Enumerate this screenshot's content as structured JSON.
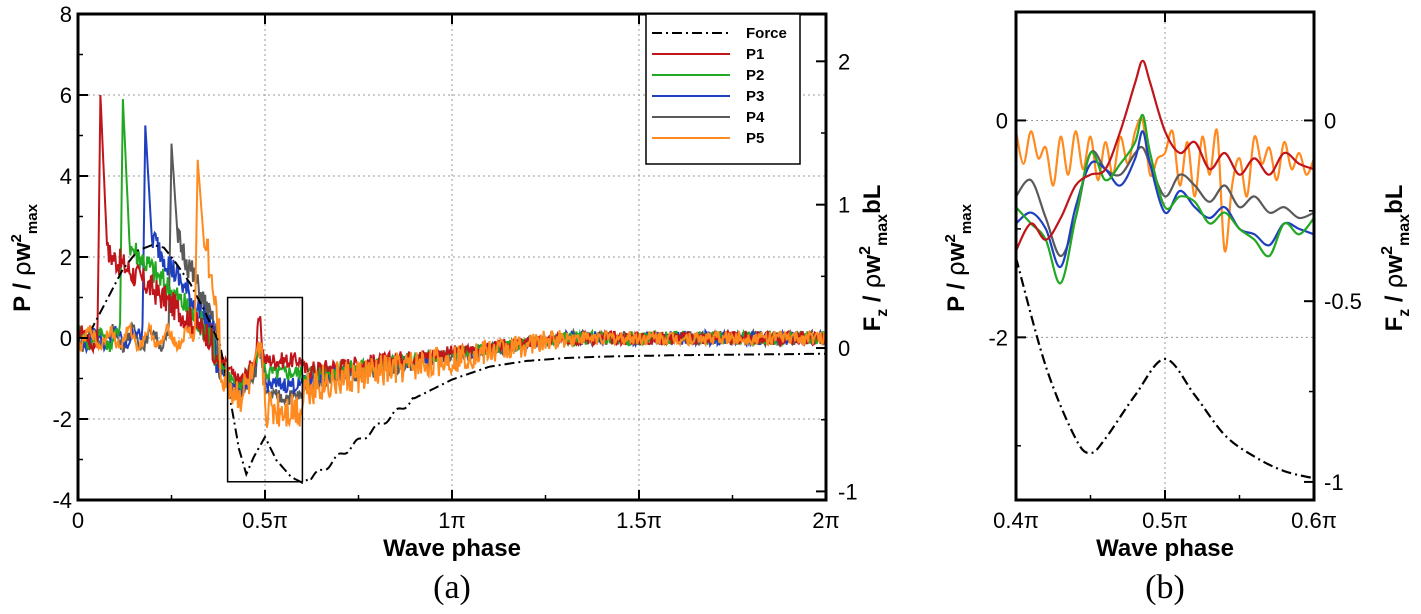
{
  "chart_data": [
    {
      "panel_label": "(a)",
      "type": "line",
      "xlabel": "Wave phase",
      "ylabel": "P / ρw²max",
      "y2label": "Fz / ρw²maxbL",
      "xlim": [
        0,
        2.0
      ],
      "ylim": [
        -4,
        8
      ],
      "y2lim": [
        -1.06,
        2.33
      ],
      "xticks": [
        0,
        0.5,
        1.0,
        1.5,
        2.0
      ],
      "xtick_labels": [
        "0",
        "0.5π",
        "1π",
        "1.5π",
        "2π"
      ],
      "yticks": [
        -4,
        -2,
        0,
        2,
        4,
        6,
        8
      ],
      "ytick_labels": [
        "-4",
        "-2",
        "0",
        "2",
        "4",
        "6",
        "8"
      ],
      "y2ticks": [
        -1,
        0,
        1,
        2
      ],
      "y2tick_labels": [
        "-1",
        "0",
        "1",
        "2"
      ],
      "grid": true,
      "legend_position": "top-right",
      "zoom_box": {
        "x": [
          0.4,
          0.6
        ],
        "y": [
          -3.55,
          1.0
        ]
      },
      "series": [
        {
          "name": "Force",
          "axis": "right",
          "color": "#000000",
          "dash": "dashdot",
          "x": [
            0,
            0.04,
            0.08,
            0.12,
            0.16,
            0.2,
            0.23,
            0.26,
            0.3,
            0.34,
            0.38,
            0.41,
            0.43,
            0.45,
            0.47,
            0.5,
            0.53,
            0.57,
            0.6,
            0.65,
            0.7,
            0.8,
            0.9,
            1.0,
            1.1,
            1.2,
            1.3,
            1.4,
            1.5,
            1.6,
            1.8,
            2.0
          ],
          "y": [
            0.0,
            0.15,
            0.35,
            0.55,
            0.68,
            0.72,
            0.7,
            0.6,
            0.45,
            0.25,
            0.02,
            -0.4,
            -0.7,
            -0.88,
            -0.76,
            -0.62,
            -0.78,
            -0.9,
            -0.94,
            -0.86,
            -0.75,
            -0.55,
            -0.35,
            -0.22,
            -0.13,
            -0.09,
            -0.07,
            -0.06,
            -0.055,
            -0.05,
            -0.045,
            -0.04
          ]
        },
        {
          "name": "P1",
          "axis": "left",
          "color": "#c0161b",
          "peak_at": 0.06,
          "peak": 6.0,
          "lag": 0.0,
          "level": 0.55
        },
        {
          "name": "P2",
          "axis": "left",
          "color": "#23a823",
          "peak_at": 0.12,
          "peak": 5.9,
          "lag": 0.005,
          "level": 0.7
        },
        {
          "name": "P3",
          "axis": "left",
          "color": "#1f3fbf",
          "peak_at": 0.18,
          "peak": 5.25,
          "lag": 0.01,
          "level": 0.85
        },
        {
          "name": "P4",
          "axis": "left",
          "color": "#5a5a5a",
          "peak_at": 0.25,
          "peak": 4.8,
          "lag": 0.015,
          "level": 0.8
        },
        {
          "name": "P5",
          "axis": "left",
          "color": "#ff8a1f",
          "peak_at": 0.32,
          "peak": 4.4,
          "lag": 0.02,
          "level": 0.75
        }
      ]
    },
    {
      "panel_label": "(b)",
      "type": "line",
      "xlabel": "Wave phase",
      "ylabel": "P / ρw²max",
      "y2label": "Fz / ρw²maxbL",
      "xlim": [
        0.4,
        0.6
      ],
      "ylim": [
        -3.5,
        1.0
      ],
      "y2lim": [
        -1.05,
        0.3
      ],
      "xticks": [
        0.4,
        0.5,
        0.6
      ],
      "xtick_labels": [
        "0.4π",
        "0.5π",
        "0.6π"
      ],
      "yticks": [
        0,
        -2
      ],
      "ytick_labels": [
        "0",
        "-2"
      ],
      "y2ticks": [
        0,
        -0.5,
        -1
      ],
      "y2tick_labels": [
        "0",
        "-0.5",
        "-1"
      ],
      "grid": true,
      "series": [
        {
          "name": "Force",
          "axis": "right",
          "color": "#000000",
          "dash": "dashdot",
          "x": [
            0.4,
            0.42,
            0.44,
            0.45,
            0.46,
            0.48,
            0.5,
            0.52,
            0.54,
            0.56,
            0.58,
            0.6
          ],
          "y": [
            -0.38,
            -0.68,
            -0.88,
            -0.92,
            -0.88,
            -0.76,
            -0.66,
            -0.76,
            -0.87,
            -0.93,
            -0.97,
            -0.99
          ]
        },
        {
          "name": "P1",
          "axis": "left",
          "color": "#c0161b",
          "x": [
            0.4,
            0.41,
            0.42,
            0.43,
            0.44,
            0.45,
            0.46,
            0.47,
            0.48,
            0.485,
            0.49,
            0.5,
            0.51,
            0.52,
            0.53,
            0.54,
            0.55,
            0.56,
            0.57,
            0.58,
            0.59,
            0.6
          ],
          "y": [
            -1.2,
            -0.95,
            -1.1,
            -0.9,
            -0.6,
            -0.5,
            -0.45,
            -0.1,
            0.35,
            0.55,
            0.35,
            -0.1,
            -0.3,
            -0.2,
            -0.45,
            -0.3,
            -0.5,
            -0.35,
            -0.5,
            -0.3,
            -0.4,
            -0.45
          ]
        },
        {
          "name": "P2",
          "axis": "left",
          "color": "#23a823",
          "x": [
            0.4,
            0.41,
            0.42,
            0.43,
            0.44,
            0.45,
            0.46,
            0.47,
            0.48,
            0.485,
            0.49,
            0.5,
            0.51,
            0.52,
            0.53,
            0.54,
            0.55,
            0.56,
            0.57,
            0.58,
            0.59,
            0.6
          ],
          "y": [
            -0.8,
            -0.95,
            -1.1,
            -1.5,
            -0.9,
            -0.3,
            -0.55,
            -0.4,
            -0.2,
            0.05,
            -0.3,
            -0.8,
            -0.7,
            -0.75,
            -0.95,
            -0.85,
            -1.0,
            -1.1,
            -1.25,
            -0.95,
            -1.05,
            -0.9
          ]
        },
        {
          "name": "P3",
          "axis": "left",
          "color": "#1f3fbf",
          "x": [
            0.4,
            0.41,
            0.42,
            0.43,
            0.44,
            0.45,
            0.46,
            0.47,
            0.48,
            0.485,
            0.49,
            0.5,
            0.51,
            0.52,
            0.53,
            0.54,
            0.55,
            0.56,
            0.57,
            0.58,
            0.59,
            0.6
          ],
          "y": [
            -0.95,
            -0.85,
            -1.0,
            -1.35,
            -0.8,
            -0.4,
            -0.45,
            -0.6,
            -0.35,
            -0.1,
            -0.4,
            -0.85,
            -0.65,
            -0.8,
            -0.9,
            -0.8,
            -1.0,
            -1.05,
            -1.15,
            -0.95,
            -1.0,
            -1.05
          ]
        },
        {
          "name": "P4",
          "axis": "left",
          "color": "#5a5a5a",
          "x": [
            0.4,
            0.41,
            0.42,
            0.43,
            0.44,
            0.45,
            0.46,
            0.47,
            0.48,
            0.485,
            0.49,
            0.5,
            0.51,
            0.52,
            0.53,
            0.54,
            0.55,
            0.56,
            0.57,
            0.58,
            0.59,
            0.6
          ],
          "y": [
            -0.7,
            -0.55,
            -0.9,
            -1.25,
            -0.9,
            -0.3,
            -0.45,
            -0.5,
            -0.3,
            -0.25,
            -0.4,
            -0.7,
            -0.5,
            -0.6,
            -0.75,
            -0.6,
            -0.8,
            -0.7,
            -0.85,
            -0.8,
            -0.9,
            -0.85
          ]
        },
        {
          "name": "P5",
          "axis": "left",
          "color": "#ff8a1f",
          "x": [
            0.4,
            0.405,
            0.41,
            0.415,
            0.42,
            0.425,
            0.43,
            0.435,
            0.44,
            0.445,
            0.45,
            0.455,
            0.46,
            0.465,
            0.47,
            0.475,
            0.48,
            0.485,
            0.49,
            0.495,
            0.5,
            0.505,
            0.51,
            0.515,
            0.52,
            0.525,
            0.53,
            0.535,
            0.54,
            0.545,
            0.55,
            0.555,
            0.56,
            0.565,
            0.57,
            0.575,
            0.58,
            0.585,
            0.59,
            0.595,
            0.6
          ],
          "y": [
            -0.1,
            -0.4,
            -0.1,
            -0.35,
            -0.25,
            -0.6,
            -0.15,
            -0.5,
            -0.1,
            -0.45,
            -0.15,
            -0.55,
            -0.2,
            -0.5,
            -0.15,
            -0.4,
            -0.1,
            0.0,
            -0.5,
            -0.35,
            -0.3,
            -0.1,
            -0.6,
            -0.2,
            -0.7,
            -0.15,
            -0.5,
            -0.1,
            -1.2,
            -0.6,
            -0.35,
            -0.7,
            -0.15,
            -0.4,
            -0.25,
            -0.55,
            -0.2,
            -0.45,
            -0.3,
            -0.5,
            -0.35
          ]
        }
      ]
    }
  ]
}
